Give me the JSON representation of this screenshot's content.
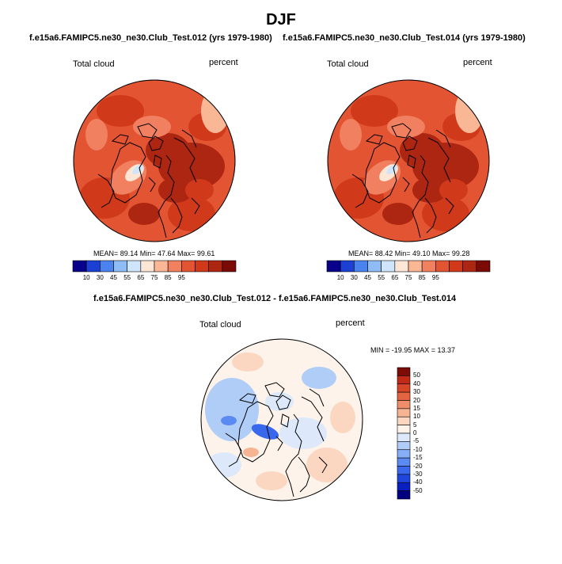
{
  "page": {
    "title": "DJF",
    "case_a_title": "f.e15a6.FAMIPC5.ne30_ne30.Club_Test.012 (yrs 1979-1980)",
    "case_b_title": "f.e15a6.FAMIPC5.ne30_ne30.Club_Test.014 (yrs 1979-1980)",
    "diff_title": "f.e15a6.FAMIPC5.ne30_ne30.Club_Test.012 - f.e15a6.FAMIPC5.ne30_ne30.Club_Test.014"
  },
  "colors": {
    "abs_scale": [
      "#08008a",
      "#1c3fd4",
      "#4a82ee",
      "#8fbcf5",
      "#cfe5fb",
      "#fde6d6",
      "#f9b796",
      "#f08060",
      "#e35432",
      "#d03a1a",
      "#ad2612",
      "#7a0a05"
    ],
    "diff_scale": [
      "#000080",
      "#0a1fc0",
      "#1e46dc",
      "#3a68ec",
      "#5b8af2",
      "#86aef6",
      "#b0cdf8",
      "#dde9fa",
      "#fdf3ea",
      "#fbd7c1",
      "#f6b493",
      "#ef8c69",
      "#e56440",
      "#d84628",
      "#c02a16",
      "#7e0c06"
    ]
  },
  "chart_data": [
    {
      "type": "heatmap",
      "subtype": "polar-stereographic map",
      "title": "f.e15a6.FAMIPC5.ne30_ne30.Club_Test.012 (yrs 1979-1980)",
      "variable": "Total cloud",
      "units": "percent",
      "stats": {
        "mean": "89.14",
        "min": "47.64",
        "max": "99.61"
      },
      "stats_text": "MEAN=  89.14   Min=  47.64   Max=  99.61",
      "colorbar_ticks": [
        "10",
        "30",
        "45",
        "55",
        "65",
        "75",
        "85",
        "95"
      ],
      "colorbar_levels": 12
    },
    {
      "type": "heatmap",
      "subtype": "polar-stereographic map",
      "title": "f.e15a6.FAMIPC5.ne30_ne30.Club_Test.014 (yrs 1979-1980)",
      "variable": "Total cloud",
      "units": "percent",
      "stats": {
        "mean": "88.42",
        "min": "49.10",
        "max": "99.28"
      },
      "stats_text": "MEAN=  88.42   Min=  49.10   Max=  99.28",
      "colorbar_ticks": [
        "10",
        "30",
        "45",
        "55",
        "65",
        "75",
        "85",
        "95"
      ],
      "colorbar_levels": 12
    },
    {
      "type": "heatmap",
      "subtype": "polar-stereographic difference map",
      "title": "f.e15a6.FAMIPC5.ne30_ne30.Club_Test.012 - f.e15a6.FAMIPC5.ne30_ne30.Club_Test.014",
      "variable": "Total cloud",
      "units": "percent",
      "stats": {
        "min": "-19.95",
        "max": "13.37"
      },
      "stats_text": "MIN = -19.95 MAX =  13.37",
      "colorbar_ticks": [
        "50",
        "40",
        "30",
        "20",
        "15",
        "10",
        "5",
        "0",
        "-5",
        "-10",
        "-15",
        "-20",
        "-30",
        "-40",
        "-50"
      ],
      "colorbar_levels": 16
    }
  ]
}
